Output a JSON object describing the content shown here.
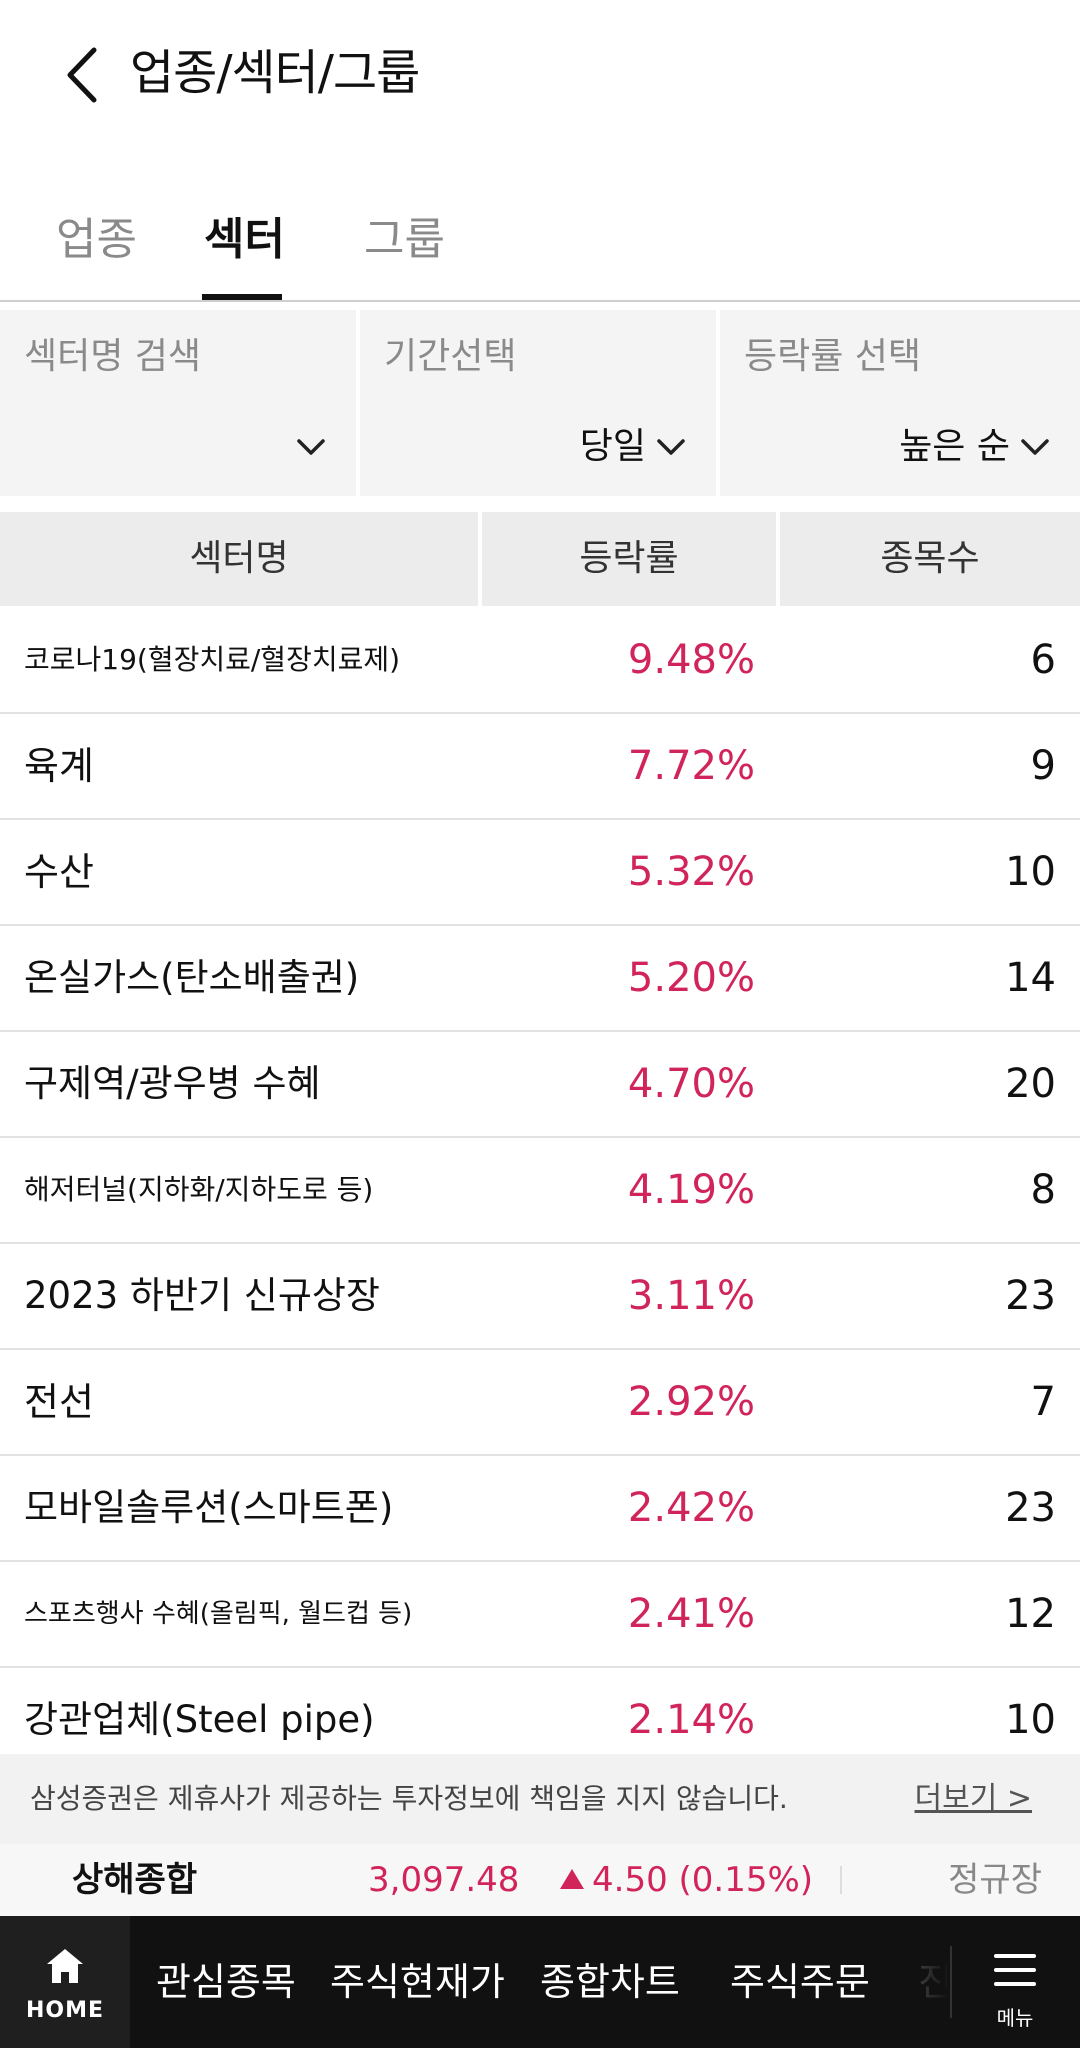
{
  "header": {
    "title": "업종/섹터/그룹"
  },
  "tabs": [
    {
      "label": "업종"
    },
    {
      "label": "섹터"
    },
    {
      "label": "그룹"
    }
  ],
  "filters": {
    "sector_search": {
      "label": "섹터명 검색",
      "value": ""
    },
    "period": {
      "label": "기간선택",
      "value": "당일"
    },
    "rate": {
      "label": "등락률 선택",
      "value": "높은 순"
    }
  },
  "table": {
    "columns": [
      "섹터명",
      "등락률",
      "종목수"
    ],
    "rows": [
      {
        "name": "코로나19(혈장치료/혈장치료제)",
        "rate": "9.48%",
        "count": "6"
      },
      {
        "name": "육계",
        "rate": "7.72%",
        "count": "9"
      },
      {
        "name": "수산",
        "rate": "5.32%",
        "count": "10"
      },
      {
        "name": "온실가스(탄소배출권)",
        "rate": "5.20%",
        "count": "14"
      },
      {
        "name": "구제역/광우병 수혜",
        "rate": "4.70%",
        "count": "20"
      },
      {
        "name": "해저터널(지하화/지하도로 등)",
        "rate": "4.19%",
        "count": "8"
      },
      {
        "name": "2023 하반기 신규상장",
        "rate": "3.11%",
        "count": "23"
      },
      {
        "name": "전선",
        "rate": "2.92%",
        "count": "7"
      },
      {
        "name": "모바일솔루션(스마트폰)",
        "rate": "2.42%",
        "count": "23"
      },
      {
        "name": "스포츠행사 수혜(올림픽, 월드컵 등)",
        "rate": "2.41%",
        "count": "12"
      },
      {
        "name": "강관업체(Steel pipe)",
        "rate": "2.14%",
        "count": "10"
      }
    ]
  },
  "disclaimer": {
    "text": "삼성증권은 제휴사가 제공하는 투자정보에 책임을 지지 않습니다.",
    "more": "더보기 >"
  },
  "ticker": {
    "name": "상해종합",
    "value": "3,097.48",
    "change": "4.50 (0.15%)",
    "status": "정규장"
  },
  "bottom_nav": {
    "home": "HOME",
    "items": [
      "관심종목",
      "주식현재가",
      "종합차트",
      "주식주문",
      "진"
    ],
    "menu": "메뉴"
  },
  "colors": {
    "up": "#d0245a",
    "nav_bg": "#111111"
  }
}
